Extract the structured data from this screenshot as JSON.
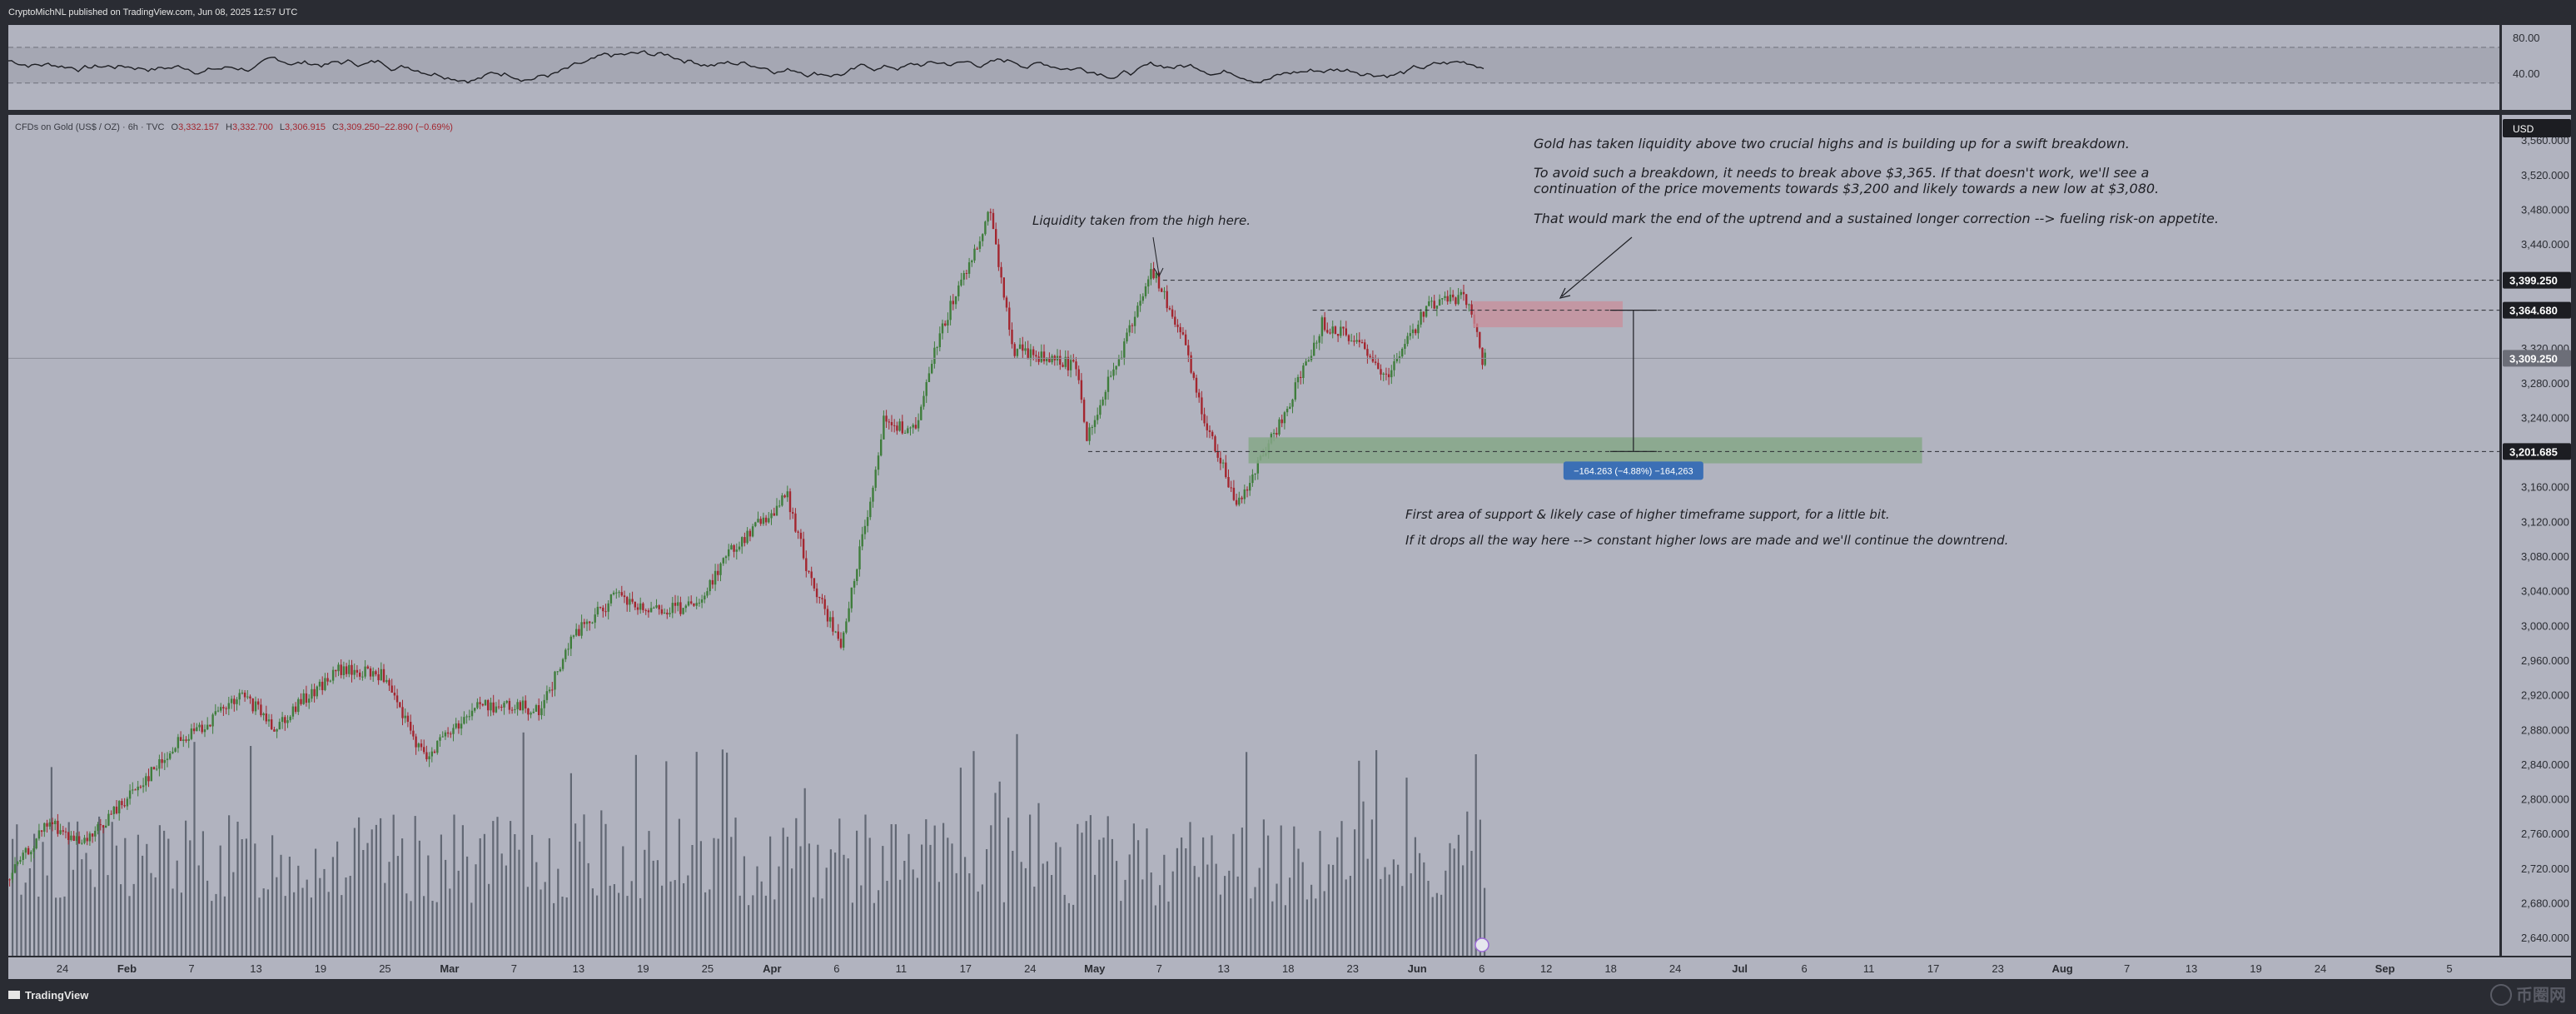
{
  "header": {
    "text": "CryptoMichNL published on TradingView.com, Jun 08, 2025 12:57 UTC"
  },
  "footer": {
    "brand": "TradingView",
    "watermark": "币圈网"
  },
  "colors": {
    "background": "#b1b3bf",
    "panel": "#2a2c33",
    "candle_up": "#3f7d3c",
    "candle_down": "#a3262f",
    "volume": "#555a66",
    "rsi_line": "#1e1f24",
    "rsi_band": "#9a9caa",
    "supply_zone": "#c98e99",
    "demand_zone": "#86a787",
    "measure_label": "#3b6fb5"
  },
  "rsi": {
    "axis_labels": [
      "80.00",
      "40.00"
    ]
  },
  "price_axis": {
    "currency_badge": "USD",
    "labels": [
      "3,560.000",
      "3,520.000",
      "3,480.000",
      "3,440.000",
      "3,400.000",
      "3,360.000",
      "3,320.000",
      "3,280.000",
      "3,240.000",
      "3,200.000",
      "3,160.000",
      "3,120.000",
      "3,080.000",
      "3,040.000",
      "3,000.000",
      "2,960.000",
      "2,920.000",
      "2,880.000",
      "2,840.000",
      "2,800.000",
      "2,760.000",
      "2,720.000",
      "2,680.000",
      "2,640.000"
    ],
    "level_tags": [
      {
        "value": 3399.25,
        "text": "3,399.250",
        "style": "dark"
      },
      {
        "value": 3364.68,
        "text": "3,364.680",
        "style": "dark"
      },
      {
        "value": 3309.25,
        "text": "3,309.250",
        "style": "current"
      },
      {
        "value": 3201.685,
        "text": "3,201.685",
        "style": "dark"
      }
    ]
  },
  "time_axis": {
    "labels": [
      {
        "t": "24",
        "bold": false
      },
      {
        "t": "Feb",
        "bold": true
      },
      {
        "t": "7",
        "bold": false
      },
      {
        "t": "13",
        "bold": false
      },
      {
        "t": "19",
        "bold": false
      },
      {
        "t": "25",
        "bold": false
      },
      {
        "t": "Mar",
        "bold": true
      },
      {
        "t": "7",
        "bold": false
      },
      {
        "t": "13",
        "bold": false
      },
      {
        "t": "19",
        "bold": false
      },
      {
        "t": "25",
        "bold": false
      },
      {
        "t": "Apr",
        "bold": true
      },
      {
        "t": "6",
        "bold": false
      },
      {
        "t": "11",
        "bold": false
      },
      {
        "t": "17",
        "bold": false
      },
      {
        "t": "24",
        "bold": false
      },
      {
        "t": "May",
        "bold": true
      },
      {
        "t": "7",
        "bold": false
      },
      {
        "t": "13",
        "bold": false
      },
      {
        "t": "18",
        "bold": false
      },
      {
        "t": "23",
        "bold": false
      },
      {
        "t": "Jun",
        "bold": true
      },
      {
        "t": "6",
        "bold": false
      },
      {
        "t": "12",
        "bold": false
      },
      {
        "t": "18",
        "bold": false
      },
      {
        "t": "24",
        "bold": false
      },
      {
        "t": "Jul",
        "bold": true
      },
      {
        "t": "6",
        "bold": false
      },
      {
        "t": "11",
        "bold": false
      },
      {
        "t": "17",
        "bold": false
      },
      {
        "t": "23",
        "bold": false
      },
      {
        "t": "Aug",
        "bold": true
      },
      {
        "t": "7",
        "bold": false
      },
      {
        "t": "13",
        "bold": false
      },
      {
        "t": "19",
        "bold": false
      },
      {
        "t": "24",
        "bold": false
      },
      {
        "t": "Sep",
        "bold": true
      },
      {
        "t": "5",
        "bold": false
      }
    ]
  },
  "chart_data": {
    "type": "candlestick",
    "title": "CFDs on Gold (US$ / OZ) · 6h · TVC",
    "ohlc_legend": [
      {
        "label": "O",
        "value": "3,332.157"
      },
      {
        "label": "H",
        "value": "3,332.700"
      },
      {
        "label": "L",
        "value": "3,306.915"
      },
      {
        "label": "C",
        "value": "3,309.250"
      },
      {
        "label": "",
        "value": "−22.890 (−0.69%)"
      }
    ],
    "ylim": [
      2620,
      3590
    ],
    "x_range": [
      "2025-01-20",
      "2025-09-10"
    ],
    "price_path": [
      [
        "2025-01-20",
        2708
      ],
      [
        "2025-01-24",
        2775
      ],
      [
        "2025-01-27",
        2745
      ],
      [
        "2025-01-31",
        2800
      ],
      [
        "2025-02-05",
        2865
      ],
      [
        "2025-02-11",
        2920
      ],
      [
        "2025-02-14",
        2885
      ],
      [
        "2025-02-20",
        2950
      ],
      [
        "2025-02-24",
        2945
      ],
      [
        "2025-02-28",
        2850
      ],
      [
        "2025-03-05",
        2910
      ],
      [
        "2025-03-11",
        2905
      ],
      [
        "2025-03-14",
        2990
      ],
      [
        "2025-03-18",
        3035
      ],
      [
        "2025-03-21",
        3015
      ],
      [
        "2025-03-26",
        3025
      ],
      [
        "2025-03-28",
        3080
      ],
      [
        "2025-04-03",
        3150
      ],
      [
        "2025-04-05",
        3060
      ],
      [
        "2025-04-08",
        2975
      ],
      [
        "2025-04-10",
        3100
      ],
      [
        "2025-04-12",
        3235
      ],
      [
        "2025-04-15",
        3225
      ],
      [
        "2025-04-17",
        3330
      ],
      [
        "2025-04-22",
        3480
      ],
      [
        "2025-04-24",
        3320
      ],
      [
        "2025-04-27",
        3310
      ],
      [
        "2025-04-30",
        3300
      ],
      [
        "2025-05-01",
        3220
      ],
      [
        "2025-05-05",
        3340
      ],
      [
        "2025-05-07",
        3415
      ],
      [
        "2025-05-10",
        3330
      ],
      [
        "2025-05-12",
        3240
      ],
      [
        "2025-05-15",
        3140
      ],
      [
        "2025-05-17",
        3185
      ],
      [
        "2025-05-20",
        3260
      ],
      [
        "2025-05-23",
        3350
      ],
      [
        "2025-05-26",
        3330
      ],
      [
        "2025-05-29",
        3290
      ],
      [
        "2025-06-02",
        3370
      ],
      [
        "2025-06-05",
        3380
      ],
      [
        "2025-06-06",
        3362
      ],
      [
        "2025-06-07",
        3309
      ]
    ],
    "annotations": {
      "liquidity": "Liquidity taken from the high here.",
      "thesis": [
        "Gold has taken liquidity above two crucial highs and is building up for a swift breakdown.",
        "To avoid such a breakdown, it needs to break above $3,365. If that doesn't work, we'll see a",
        "continuation of the price movements towards $3,200 and likely towards a new low at $3,080.",
        "That would mark the end of the uptrend and a sustained longer correction --> fueling risk-on appetite."
      ],
      "support": [
        "First area of support & likely case of higher timeframe support, for a little bit.",
        "If it drops all the way here --> constant higher lows are made and we'll continue the downtrend."
      ],
      "measure": "−164.263 (−4.88%) −164,263"
    },
    "zones": {
      "supply": {
        "from": "2025-06-06",
        "to": "2025-06-20",
        "low": 3345,
        "high": 3375
      },
      "demand": {
        "from": "2025-05-16",
        "to": "2025-07-18",
        "low": 3188,
        "high": 3218
      }
    },
    "levels": {
      "resistance": 3399.25,
      "breakdown": 3364.68,
      "support": 3201.685
    }
  }
}
